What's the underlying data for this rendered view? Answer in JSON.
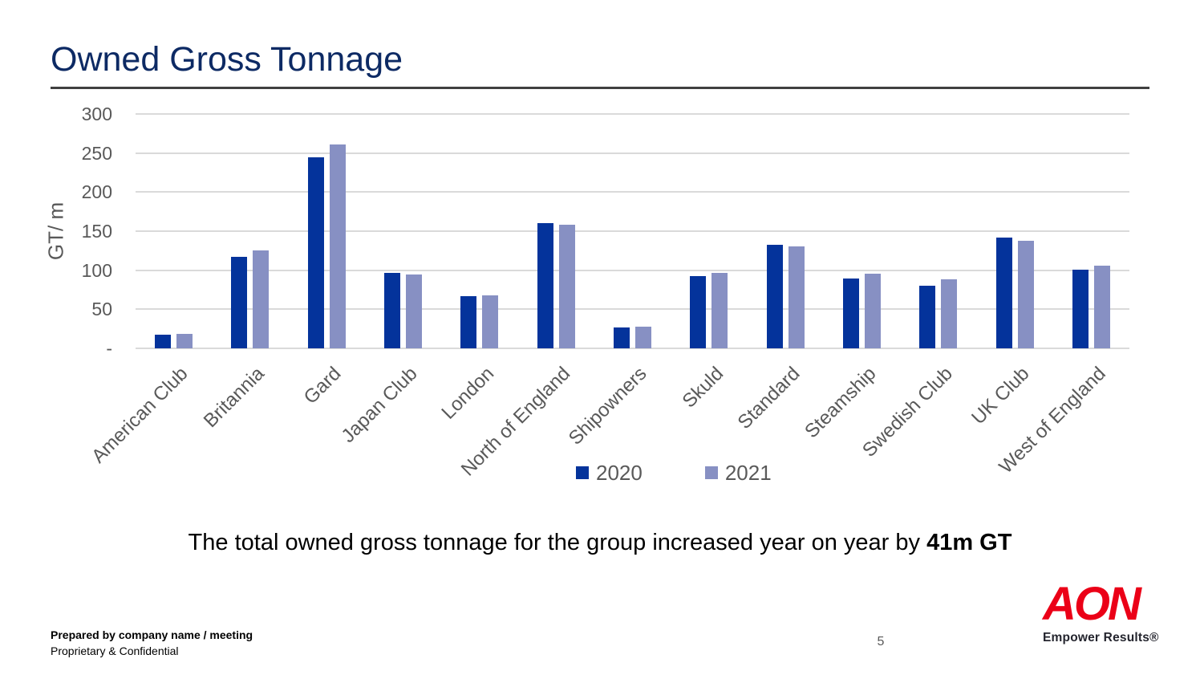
{
  "slide": {
    "title": "Owned Gross Tonnage",
    "summary_prefix": "The total owned gross tonnage for the group increased year on year by ",
    "summary_bold": "41m GT"
  },
  "chart_data": {
    "type": "bar",
    "title": "",
    "xlabel": "",
    "ylabel": "GT/ m",
    "ylim": [
      0,
      300
    ],
    "ytick_step": 50,
    "ytick_labels": [
      "300",
      "250",
      "200",
      "150",
      "100",
      "50",
      "-"
    ],
    "grid": true,
    "legend_position": "bottom",
    "categories": [
      "American Club",
      "Britannia",
      "Gard",
      "Japan Club",
      "London",
      "North of England",
      "Shipowners",
      "Skuld",
      "Standard",
      "Steamship",
      "Swedish Club",
      "UK Club",
      "West of England"
    ],
    "series": [
      {
        "name": "2020",
        "color": "#04339B",
        "values": [
          17,
          117,
          245,
          97,
          67,
          160,
          27,
          92,
          133,
          89,
          80,
          142,
          101
        ]
      },
      {
        "name": "2021",
        "color": "#8790C3",
        "values": [
          18,
          125,
          261,
          95,
          68,
          158,
          28,
          97,
          130,
          96,
          88,
          138,
          106
        ]
      }
    ]
  },
  "colors": {
    "title_navy": "#0D2A64",
    "title_rule_gray": "#404040",
    "axis_text_gray": "#595959",
    "gridline_gray": "#DADADA",
    "bar_2020": "#04339B",
    "bar_2021": "#8790C3",
    "logo_red": "#EB0017",
    "logo_tagline_dark": "#24252E"
  },
  "footer": {
    "prepared_by": "Prepared by company name / meeting",
    "confidential": "Proprietary & Confidential",
    "page_number": "5",
    "logo_text": "AON",
    "logo_tagline": "Empower Results®"
  }
}
